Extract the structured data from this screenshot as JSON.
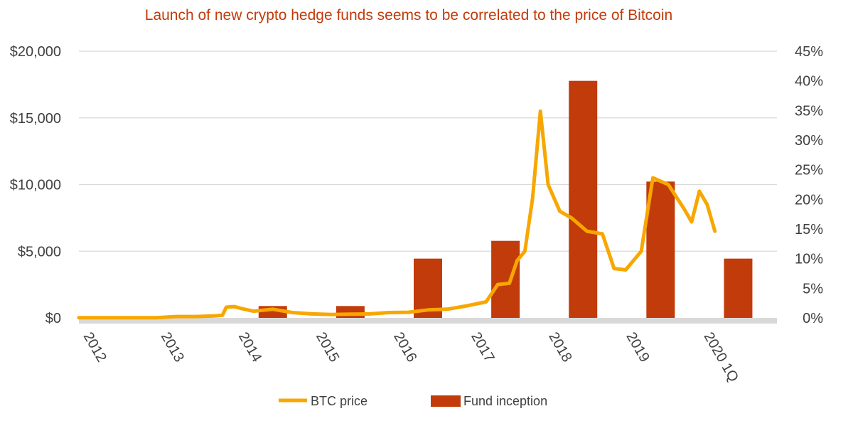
{
  "chart_data": {
    "type": "bar+line",
    "title": "Launch of new crypto  hedge funds seems to be correlated to the price of Bitcoin",
    "categories": [
      "2012",
      "2013",
      "2014",
      "2015",
      "2016",
      "2017",
      "2018",
      "2019",
      "2020 1Q"
    ],
    "left_axis": {
      "ticks": [
        "$0",
        "$5,000",
        "$10,000",
        "$15,000",
        "$20,000"
      ],
      "range": [
        0,
        20000
      ]
    },
    "right_axis": {
      "ticks": [
        "0%",
        "5%",
        "10%",
        "15%",
        "20%",
        "25%",
        "30%",
        "35%",
        "40%",
        "45%"
      ],
      "range": [
        0,
        45
      ]
    },
    "grid": true,
    "legend_position": "bottom",
    "series": [
      {
        "name": "Fund inception",
        "kind": "bar",
        "axis": "right",
        "color": "#c23b0a",
        "values": [
          0,
          0,
          2,
          2,
          10,
          13,
          40,
          23,
          10
        ]
      },
      {
        "name": "BTC price",
        "kind": "line",
        "axis": "left",
        "color": "#f7a700",
        "points": [
          [
            2012.0,
            13
          ],
          [
            2012.5,
            10
          ],
          [
            2013.0,
            15
          ],
          [
            2013.25,
            100
          ],
          [
            2013.5,
            100
          ],
          [
            2013.75,
            150
          ],
          [
            2013.85,
            200
          ],
          [
            2013.9,
            800
          ],
          [
            2014.0,
            850
          ],
          [
            2014.1,
            700
          ],
          [
            2014.25,
            500
          ],
          [
            2014.5,
            650
          ],
          [
            2014.75,
            400
          ],
          [
            2015.0,
            300
          ],
          [
            2015.25,
            250
          ],
          [
            2015.5,
            280
          ],
          [
            2015.75,
            300
          ],
          [
            2016.0,
            400
          ],
          [
            2016.25,
            420
          ],
          [
            2016.5,
            600
          ],
          [
            2016.75,
            650
          ],
          [
            2017.0,
            900
          ],
          [
            2017.25,
            1200
          ],
          [
            2017.4,
            2500
          ],
          [
            2017.55,
            2600
          ],
          [
            2017.65,
            4300
          ],
          [
            2017.75,
            5000
          ],
          [
            2017.85,
            9000
          ],
          [
            2017.95,
            15500
          ],
          [
            2018.05,
            10000
          ],
          [
            2018.2,
            8000
          ],
          [
            2018.35,
            7500
          ],
          [
            2018.55,
            6500
          ],
          [
            2018.75,
            6300
          ],
          [
            2018.9,
            3700
          ],
          [
            2019.05,
            3600
          ],
          [
            2019.25,
            5000
          ],
          [
            2019.4,
            10500
          ],
          [
            2019.6,
            10000
          ],
          [
            2019.8,
            8200
          ],
          [
            2019.9,
            7200
          ],
          [
            2020.0,
            9500
          ],
          [
            2020.1,
            8500
          ],
          [
            2020.2,
            6500
          ]
        ]
      }
    ]
  }
}
